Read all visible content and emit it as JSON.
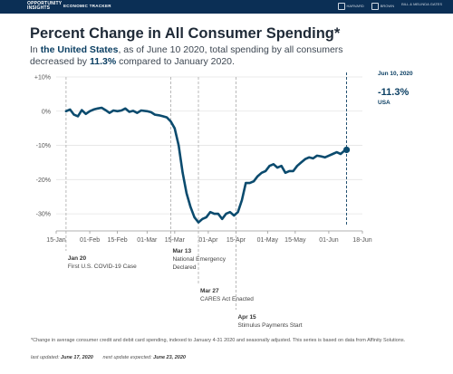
{
  "header": {
    "brand_line1": "OPPORTUNITY",
    "brand_line2": "INSIGHTS",
    "tracker": "ECONOMIC TRACKER",
    "partners": [
      "HARVARD",
      "BROWN",
      "BILL & MELINDA GATES"
    ]
  },
  "title": "Percent Change in All Consumer Spending*",
  "subtitle": {
    "pre": "In ",
    "location": "the United States",
    "mid": ", as of June 10 2020, total spending by all consumers decreased by ",
    "value": "11.3%",
    "post": " compared to January 2020."
  },
  "latest": {
    "date": "Jun 10, 2020",
    "value": "-11.3%",
    "location": "USA"
  },
  "chart_data": {
    "type": "line",
    "x_start": "2020-01-15",
    "x_end": "2020-06-18",
    "xticks": [
      "2020-01-15",
      "2020-02-01",
      "2020-02-15",
      "2020-03-01",
      "2020-03-15",
      "2020-04-01",
      "2020-04-15",
      "2020-05-01",
      "2020-05-15",
      "2020-06-01",
      "2020-06-18"
    ],
    "xtick_labels": [
      "15-Jan",
      "01-Feb",
      "15-Feb",
      "01-Mar",
      "15-Mar",
      "01-Apr",
      "15-Apr",
      "01-May",
      "15-May",
      "01-Jun",
      "18-Jun"
    ],
    "ylim": [
      -35,
      10
    ],
    "yticks": [
      10,
      0,
      -10,
      -20,
      -30
    ],
    "ytick_labels": [
      "+10%",
      "0%",
      "-10%",
      "-20%",
      "-30%"
    ],
    "grid": "horizontal",
    "line_color": "#0b4b6e",
    "series": [
      {
        "x": [
          "2020-01-20",
          "2020-01-22",
          "2020-01-24",
          "2020-01-26",
          "2020-01-28",
          "2020-01-30",
          "2020-02-01",
          "2020-02-03",
          "2020-02-05",
          "2020-02-07",
          "2020-02-09",
          "2020-02-11",
          "2020-02-13",
          "2020-02-15",
          "2020-02-17",
          "2020-02-19",
          "2020-02-21",
          "2020-02-23",
          "2020-02-25",
          "2020-02-27",
          "2020-03-01",
          "2020-03-03",
          "2020-03-05",
          "2020-03-07",
          "2020-03-09",
          "2020-03-11",
          "2020-03-13",
          "2020-03-15",
          "2020-03-17",
          "2020-03-19",
          "2020-03-21",
          "2020-03-23",
          "2020-03-25",
          "2020-03-27",
          "2020-03-29",
          "2020-03-31",
          "2020-04-02",
          "2020-04-04",
          "2020-04-06",
          "2020-04-08",
          "2020-04-10",
          "2020-04-12",
          "2020-04-14",
          "2020-04-16",
          "2020-04-18",
          "2020-04-20",
          "2020-04-22",
          "2020-04-24",
          "2020-04-26",
          "2020-04-28",
          "2020-04-30",
          "2020-05-02",
          "2020-05-04",
          "2020-05-06",
          "2020-05-08",
          "2020-05-10",
          "2020-05-12",
          "2020-05-14",
          "2020-05-16",
          "2020-05-18",
          "2020-05-20",
          "2020-05-22",
          "2020-05-24",
          "2020-05-26",
          "2020-05-28",
          "2020-05-30",
          "2020-06-01",
          "2020-06-03",
          "2020-06-05",
          "2020-06-07",
          "2020-06-09",
          "2020-06-10"
        ],
        "values": [
          0,
          0.5,
          -1,
          -1.5,
          0.3,
          -0.8,
          0,
          0.5,
          0.8,
          1,
          0.3,
          -0.5,
          0.2,
          0,
          0.2,
          0.8,
          -0.2,
          0.1,
          -0.5,
          0.2,
          0,
          -0.3,
          -1,
          -1.2,
          -1.5,
          -1.8,
          -3,
          -5,
          -10,
          -18,
          -24,
          -28,
          -31,
          -32.5,
          -31.5,
          -31,
          -29.5,
          -30,
          -30,
          -31.5,
          -30,
          -29.5,
          -30.5,
          -29.5,
          -26,
          -21,
          -21,
          -20.5,
          -19,
          -18,
          -17.5,
          -16,
          -15.5,
          -16.5,
          -16,
          -18,
          -17.5,
          -17.5,
          -16,
          -15,
          -14,
          -13.5,
          -13.8,
          -13,
          -13.2,
          -13.5,
          -13,
          -12.5,
          -12,
          -12.5,
          -11.5,
          -11.3
        ]
      }
    ],
    "events": [
      {
        "date": "2020-01-20",
        "label": "Jan 20",
        "desc": "First U.S. COVID-19 Case"
      },
      {
        "date": "2020-03-13",
        "label": "Mar 13",
        "desc": "National Emergency Declared"
      },
      {
        "date": "2020-03-27",
        "label": "Mar 27",
        "desc": "CARES Act Enacted"
      },
      {
        "date": "2020-04-15",
        "label": "Apr 15",
        "desc": "Stimulus Payments Start"
      }
    ]
  },
  "footnote": "*Change in average consumer credit and debit card spending, indexed to January 4-31 2020 and seasonally adjusted. This series is based on data from Affinity Solutions.",
  "updated": {
    "last_label": "last updated:",
    "last_value": "June 17, 2020",
    "next_label": "next update expected:",
    "next_value": "June 23, 2020"
  }
}
